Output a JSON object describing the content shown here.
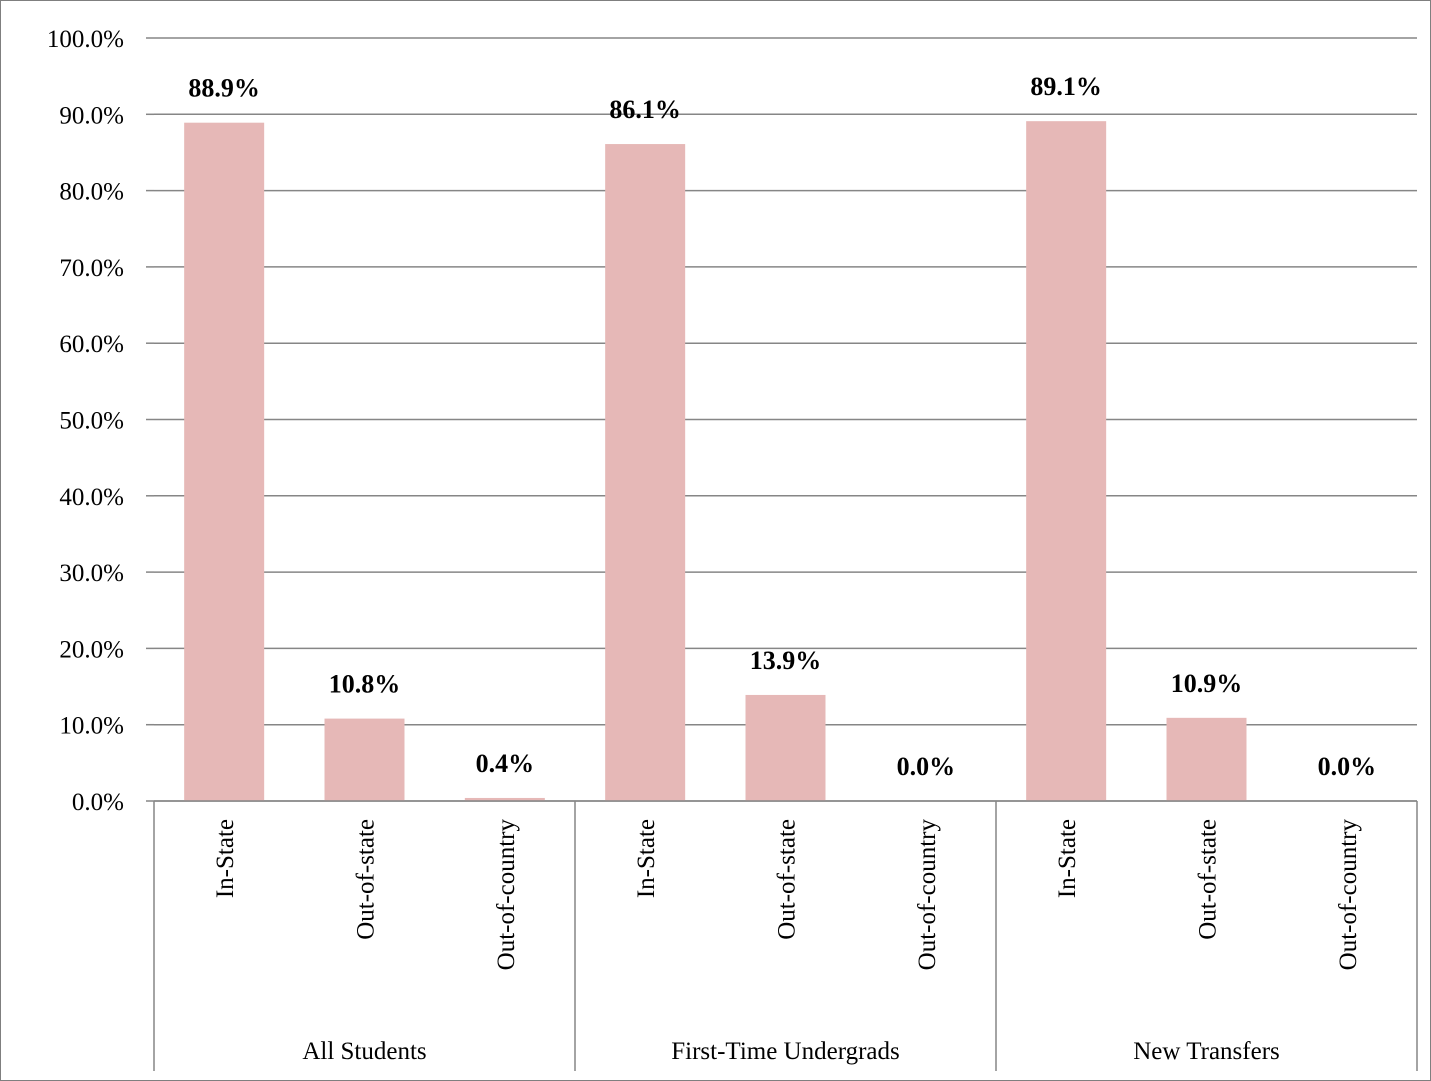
{
  "chart_data": {
    "type": "bar",
    "title": "",
    "xlabel": "",
    "ylabel": "",
    "ylim": [
      0,
      100
    ],
    "y_ticks": [
      "0.0%",
      "10.0%",
      "20.0%",
      "30.0%",
      "40.0%",
      "50.0%",
      "60.0%",
      "70.0%",
      "80.0%",
      "90.0%",
      "100.0%"
    ],
    "grid": true,
    "legend": "none",
    "bar_color": "#e6b8b7",
    "groups": [
      {
        "name": "All Students",
        "categories": [
          "In-State",
          "Out-of-state",
          "Out-of-country"
        ],
        "values": [
          88.9,
          10.8,
          0.4
        ],
        "labels": [
          "88.9%",
          "10.8%",
          "0.4%"
        ]
      },
      {
        "name": "First-Time Undergrads",
        "categories": [
          "In-State",
          "Out-of-state",
          "Out-of-country"
        ],
        "values": [
          86.1,
          13.9,
          0.0
        ],
        "labels": [
          "86.1%",
          "13.9%",
          "0.0%"
        ]
      },
      {
        "name": "New Transfers",
        "categories": [
          "In-State",
          "Out-of-state",
          "Out-of-country"
        ],
        "values": [
          89.1,
          10.9,
          0.0
        ],
        "labels": [
          "89.1%",
          "10.9%",
          "0.0%"
        ]
      }
    ]
  }
}
